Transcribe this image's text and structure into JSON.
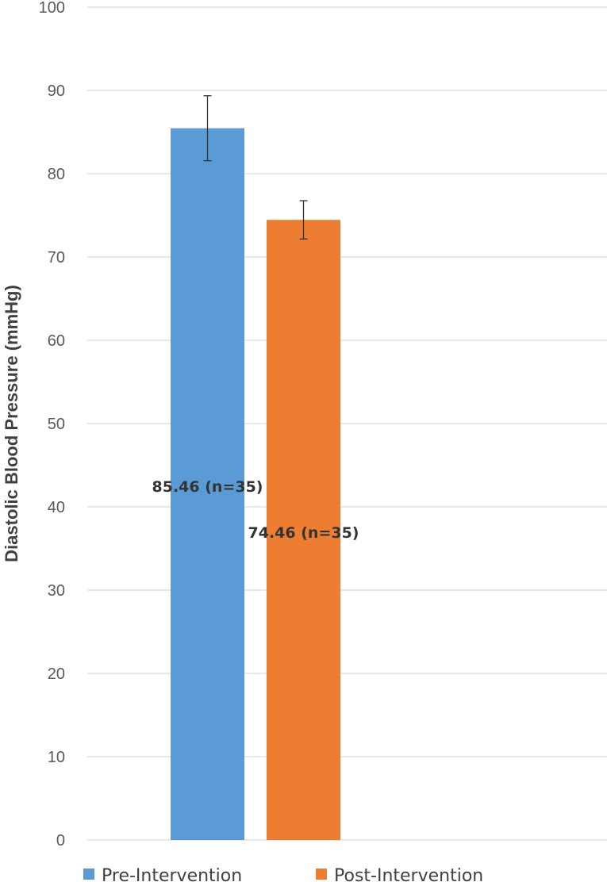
{
  "chart_data": {
    "type": "bar",
    "title": "",
    "xlabel": "",
    "ylabel": "Diastolic Blood Pressure (mmHg)",
    "ylim": [
      0,
      100
    ],
    "yticks": [
      0,
      10,
      20,
      30,
      40,
      50,
      60,
      70,
      80,
      90,
      100
    ],
    "grid": true,
    "legend_position": "bottom",
    "series": [
      {
        "name": "Pre-Intervention",
        "value": 85.46,
        "error": 3.9,
        "label": "85.46 (n=35)",
        "color": "#5B9BD5"
      },
      {
        "name": "Post-Intervention",
        "value": 74.46,
        "error": 2.3,
        "label": "74.46 (n=35)",
        "color": "#ED7D31"
      }
    ]
  }
}
